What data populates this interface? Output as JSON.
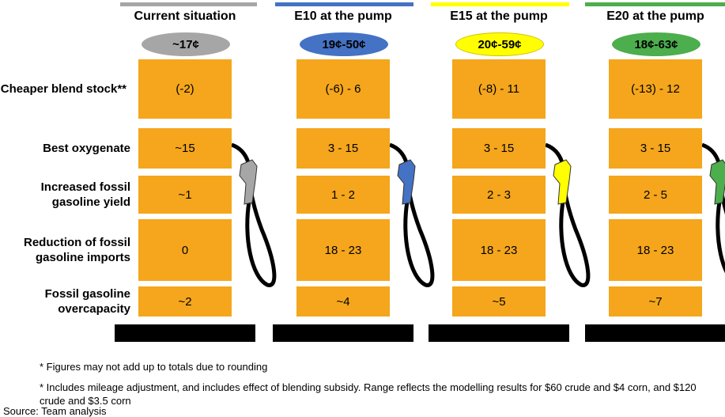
{
  "row_labels": [
    "Cheaper blend stock**",
    "Best oxygenate",
    "Increased fossil gasoline yield",
    "Reduction of fossil gasoline imports",
    "Fossil gasoline overcapacity"
  ],
  "columns": [
    {
      "title": "Current situation",
      "total": "~17¢",
      "cells": [
        "(-2)",
        "~15",
        "~1",
        "0",
        "~2"
      ]
    },
    {
      "title": "E10 at the pump",
      "total": "19¢-50¢",
      "cells": [
        "(-6) - 6",
        "3 - 15",
        "1 - 2",
        "18 - 23",
        "~4"
      ]
    },
    {
      "title": "E15 at  the pump",
      "total": "20¢-59¢",
      "cells": [
        "(-8) - 11",
        "3 - 15",
        "2 - 3",
        "18 - 23",
        "~5"
      ]
    },
    {
      "title": "E20 at  the pump",
      "total": "18¢-63¢",
      "cells": [
        "(-13) - 12",
        "3 - 15",
        "2 - 5",
        "18 - 23",
        "~7"
      ]
    }
  ],
  "footnotes": [
    "* Figures may not add up to totals due to rounding",
    "* Includes mileage adjustment, and includes effect of blending subsidy. Range reflects the modelling results for $60 crude and $4 corn, and $120 crude and $3.5 corn"
  ],
  "source": "Source: Team analysis"
}
